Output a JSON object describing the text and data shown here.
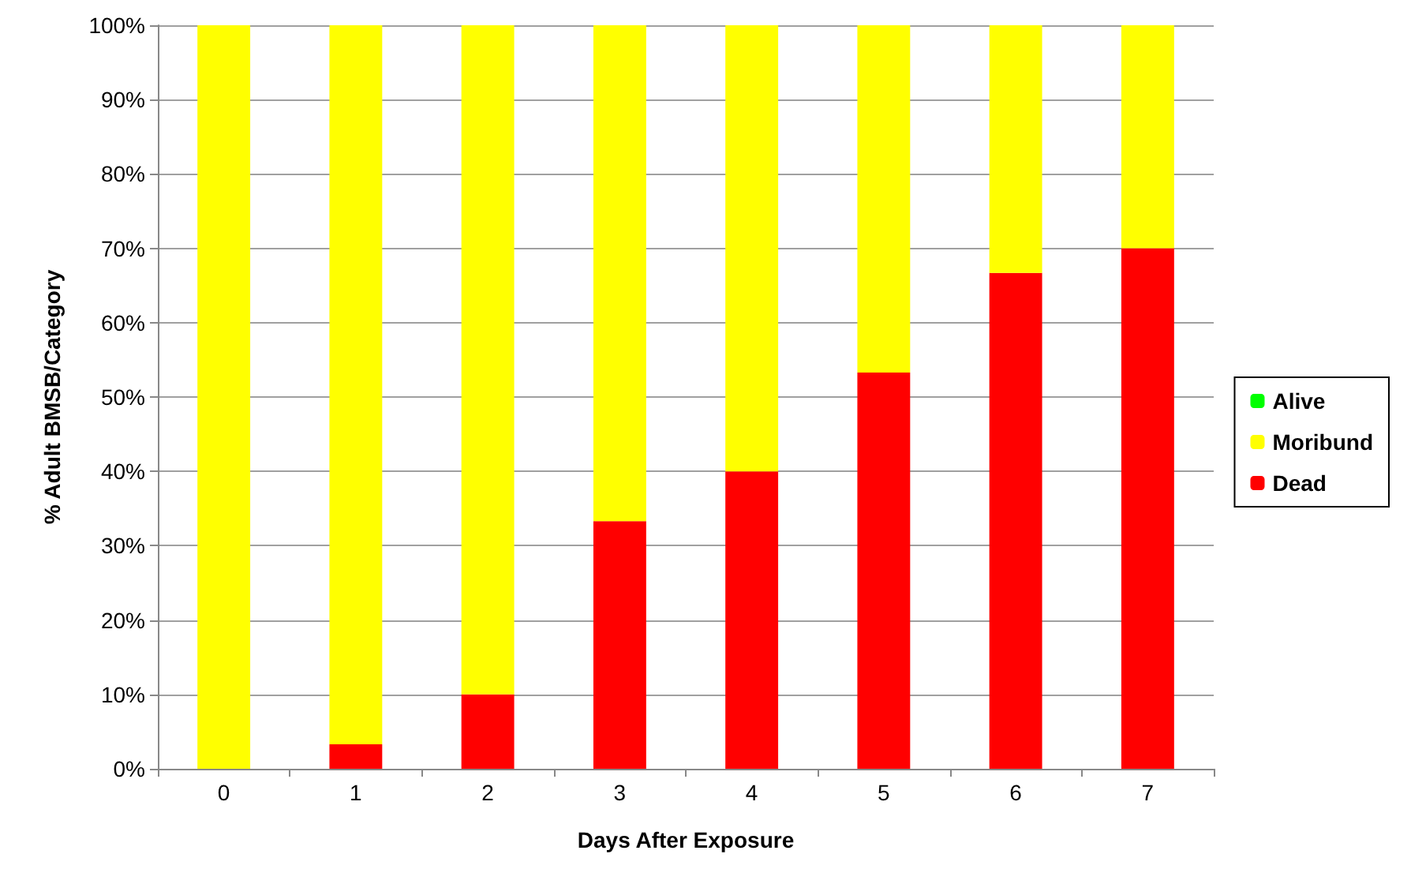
{
  "chart_data": {
    "type": "bar",
    "stacked": true,
    "xlabel": "Days After Exposure",
    "ylabel": "% Adult BMSB/Category",
    "categories": [
      "0",
      "1",
      "2",
      "3",
      "4",
      "5",
      "6",
      "7"
    ],
    "series": [
      {
        "name": "Dead",
        "color": "#ff0000",
        "values": [
          0,
          3.3,
          10,
          33.3,
          40,
          53.3,
          66.7,
          70
        ]
      },
      {
        "name": "Moribund",
        "color": "#ffff00",
        "values": [
          100,
          96.7,
          90,
          66.7,
          60,
          46.7,
          33.3,
          30
        ]
      },
      {
        "name": "Alive",
        "color": "#00ff00",
        "values": [
          0,
          0,
          0,
          0,
          0,
          0,
          0,
          0
        ]
      }
    ],
    "ylim": [
      0,
      100
    ],
    "yticks": [
      {
        "value": 0,
        "label": "0%"
      },
      {
        "value": 10,
        "label": "10%"
      },
      {
        "value": 20,
        "label": "20%"
      },
      {
        "value": 30,
        "label": "30%"
      },
      {
        "value": 40,
        "label": "40%"
      },
      {
        "value": 50,
        "label": "50%"
      },
      {
        "value": 60,
        "label": "60%"
      },
      {
        "value": 70,
        "label": "70%"
      },
      {
        "value": 80,
        "label": "80%"
      },
      {
        "value": 90,
        "label": "90%"
      },
      {
        "value": 100,
        "label": "100%"
      }
    ],
    "grid": "y",
    "legend": "right"
  }
}
